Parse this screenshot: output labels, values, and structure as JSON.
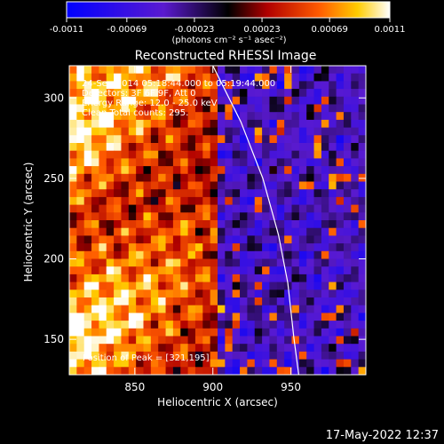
{
  "colorbar": {
    "ticks": [
      "-0.0011",
      "-0.00069",
      "-0.00023",
      "0.00023",
      "0.00069",
      "0.0011"
    ],
    "tick_values": [
      -0.0011,
      -0.00069,
      -0.00023,
      0.00023,
      0.00069,
      0.0011
    ],
    "range": [
      -0.0011,
      0.0011
    ],
    "units": "(photons cm⁻² s⁻¹ asec⁻²)"
  },
  "chart_data": {
    "type": "heatmap",
    "title": "Reconstructed RHESSI Image",
    "xlabel": "Heliocentric X (arcsec)",
    "ylabel": "Heliocentric Y (arcsec)",
    "xlim": [
      808,
      998
    ],
    "ylim": [
      128,
      320
    ],
    "x_ticks": [
      850,
      900,
      950
    ],
    "y_ticks": [
      150,
      200,
      250,
      300
    ],
    "annotations": [
      "24-Sep-2014 05:18:44.000 to 05:19:44.000",
      "Detectors: 3F 6F 9F, Att 0",
      "Energy Range: 12.0 - 25.0 keV",
      "Clean    Total counts: 295."
    ],
    "peak_label": "Position of Peak = [321,195]",
    "peak_position": [
      321,
      195
    ],
    "limb_curve": [
      [
        900,
        320
      ],
      [
        918,
        285
      ],
      [
        932,
        250
      ],
      [
        942,
        215
      ],
      [
        948,
        185
      ],
      [
        952,
        150
      ],
      [
        955,
        128
      ]
    ],
    "grid": false
  },
  "footer": {
    "timestamp": "17-May-2022 12:37"
  }
}
